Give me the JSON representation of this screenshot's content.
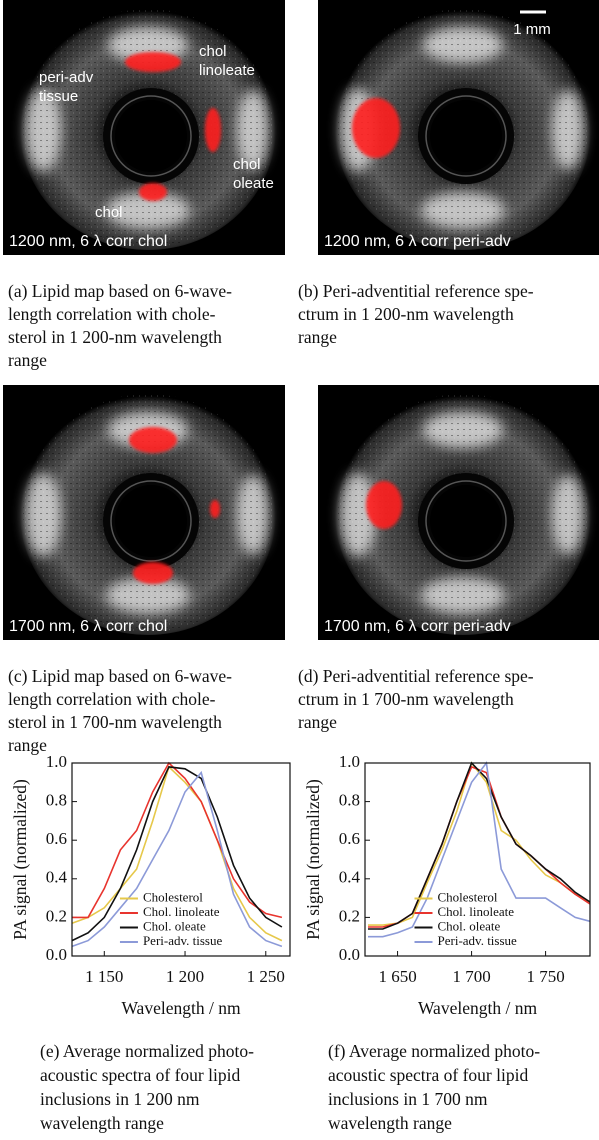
{
  "panels": [
    {
      "labels": [
        {
          "lines": [
            "chol",
            "linoleate"
          ]
        },
        {
          "lines": [
            "peri-adv",
            "tissue"
          ]
        },
        {
          "lines": [
            "chol",
            "oleate"
          ]
        },
        {
          "lines": [
            "chol"
          ]
        }
      ],
      "footer": "1200 nm, 6 λ corr chol",
      "caption": [
        "(a) Lipid map based on 6-wave-",
        "length correlation with chole-",
        "sterol in 1 200-nm wavelength",
        "range"
      ]
    },
    {
      "scale_label": "1 mm",
      "footer": "1200 nm, 6 λ corr peri-adv",
      "caption": [
        "(b) Peri-adventitial reference spe-",
        "ctrum in 1 200-nm wavelength",
        "range"
      ]
    },
    {
      "footer": "1700 nm, 6 λ corr chol",
      "caption": [
        "(c) Lipid map based on 6-wave-",
        "length correlation with chole-",
        "sterol in 1 700-nm wavelength",
        "range"
      ]
    },
    {
      "footer": "1700 nm, 6 λ corr peri-adv",
      "caption": [
        "(d) Peri-adventitial reference spe-",
        "ctrum in 1 700-nm wavelength",
        "range"
      ]
    }
  ],
  "chart_data": [
    {
      "type": "line",
      "xlabel": "Wavelength / nm",
      "ylabel": "PA signal (normalized)",
      "x": [
        1130,
        1140,
        1150,
        1160,
        1170,
        1180,
        1190,
        1200,
        1210,
        1220,
        1230,
        1240,
        1250,
        1260
      ],
      "series": [
        {
          "name": "Cholesterol",
          "color": "#e6c84a",
          "values": [
            0.17,
            0.2,
            0.25,
            0.35,
            0.45,
            0.7,
            0.98,
            0.9,
            0.8,
            0.6,
            0.35,
            0.2,
            0.12,
            0.08
          ]
        },
        {
          "name": "Chol. linoleate",
          "color": "#e8342e",
          "values": [
            0.2,
            0.2,
            0.35,
            0.55,
            0.65,
            0.85,
            1.0,
            0.92,
            0.8,
            0.6,
            0.4,
            0.28,
            0.22,
            0.2
          ]
        },
        {
          "name": "Chol. oleate",
          "color": "#111111",
          "values": [
            0.08,
            0.12,
            0.2,
            0.35,
            0.55,
            0.8,
            0.98,
            0.97,
            0.92,
            0.72,
            0.47,
            0.3,
            0.2,
            0.15
          ]
        },
        {
          "name": "Peri-adv. tissue",
          "color": "#8c9ad8",
          "values": [
            0.05,
            0.08,
            0.15,
            0.25,
            0.35,
            0.5,
            0.65,
            0.85,
            0.95,
            0.65,
            0.32,
            0.15,
            0.08,
            0.05
          ]
        }
      ],
      "xlim": [
        1130,
        1265
      ],
      "xticks": [
        {
          "value": 1150,
          "label": "1 150"
        },
        {
          "value": 1200,
          "label": "1 200"
        },
        {
          "value": 1250,
          "label": "1 250"
        }
      ],
      "ylim": [
        0,
        1
      ],
      "yticks": [
        {
          "value": 0,
          "label": "0.0"
        },
        0.2,
        0.4,
        0.6,
        0.8,
        {
          "value": 1,
          "label": "1.0"
        }
      ],
      "legend": "lower center",
      "caption": [
        "(e) Average normalized photo-",
        "acoustic spectra of four lipid",
        "inclusions in 1 200 nm",
        "wavelength range"
      ]
    },
    {
      "type": "line",
      "xlabel": "Wavelength / nm",
      "ylabel": "PA signal (normalized)",
      "x": [
        1630,
        1640,
        1650,
        1660,
        1670,
        1680,
        1690,
        1700,
        1710,
        1720,
        1730,
        1740,
        1750,
        1760,
        1770,
        1780
      ],
      "series": [
        {
          "name": "Cholesterol",
          "color": "#e6c84a",
          "values": [
            0.16,
            0.16,
            0.17,
            0.2,
            0.38,
            0.55,
            0.75,
            1.0,
            0.9,
            0.65,
            0.6,
            0.5,
            0.42,
            0.38,
            0.32,
            0.28
          ]
        },
        {
          "name": "Chol. linoleate",
          "color": "#e8342e",
          "values": [
            0.15,
            0.15,
            0.17,
            0.22,
            0.4,
            0.58,
            0.8,
            0.98,
            0.95,
            0.72,
            0.58,
            0.52,
            0.45,
            0.38,
            0.32,
            0.27
          ]
        },
        {
          "name": "Chol. oleate",
          "color": "#111111",
          "values": [
            0.14,
            0.14,
            0.17,
            0.22,
            0.4,
            0.58,
            0.8,
            1.0,
            0.92,
            0.72,
            0.58,
            0.52,
            0.45,
            0.4,
            0.33,
            0.28
          ]
        },
        {
          "name": "Peri-adv. tissue",
          "color": "#8c9ad8",
          "values": [
            0.1,
            0.1,
            0.12,
            0.15,
            0.3,
            0.5,
            0.7,
            0.9,
            1.0,
            0.45,
            0.3,
            0.3,
            0.3,
            0.25,
            0.2,
            0.18
          ]
        }
      ],
      "xlim": [
        1628,
        1780
      ],
      "xticks": [
        {
          "value": 1650,
          "label": "1 650"
        },
        {
          "value": 1700,
          "label": "1 700"
        },
        {
          "value": 1750,
          "label": "1 750"
        }
      ],
      "ylim": [
        0,
        1
      ],
      "yticks": [
        {
          "value": 0,
          "label": "0.0"
        },
        0.2,
        0.4,
        0.6,
        0.8,
        {
          "value": 1,
          "label": "1.0"
        }
      ],
      "legend": "lower center",
      "caption": [
        "(f) Average normalized photo-",
        "acoustic spectra of four lipid",
        "inclusions in 1 700 nm",
        "wavelength range"
      ]
    }
  ]
}
